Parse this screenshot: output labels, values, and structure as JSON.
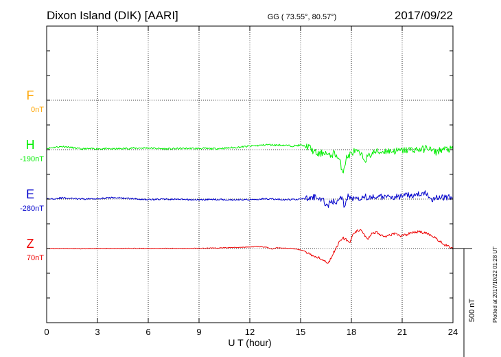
{
  "header": {
    "station": "Dixon Island (DIK)  [AARI]",
    "coords": "GG ( 73.55°,  80.57°)",
    "date": "2017/09/22"
  },
  "footer_note": "Plotted at 2017/10/22 01:28 UT",
  "chart_data": {
    "type": "line",
    "xlabel": "U T (hour)",
    "xlim": [
      0,
      24
    ],
    "xticks": [
      0,
      3,
      6,
      9,
      12,
      15,
      18,
      21,
      24
    ],
    "ylim": [
      -1200,
      0
    ],
    "grid": true,
    "scale_bar": {
      "label": "500 nT",
      "value": 500
    },
    "components": [
      {
        "name": "F",
        "baseline_label": "0nT",
        "baseline": -300,
        "color": "#ffa500"
      },
      {
        "name": "H",
        "baseline_label": "-190nT",
        "baseline": -500,
        "color": "#00ee00"
      },
      {
        "name": "E",
        "baseline_label": "-280nT",
        "baseline": -700,
        "color": "#0000cc"
      },
      {
        "name": "Z",
        "baseline_label": "70nT",
        "baseline": -900,
        "color": "#ee0000"
      }
    ],
    "series": [
      {
        "name": "H",
        "color": "#00ee00",
        "noise": 8,
        "seed": 11,
        "x": [
          0,
          0.5,
          1,
          1.5,
          2,
          3,
          4,
          5,
          6,
          7,
          8,
          9,
          10,
          10.5,
          11,
          12,
          13,
          14,
          14.5,
          15,
          15.5,
          15.8,
          16.1,
          16.4,
          16.7,
          17,
          17.3,
          17.5,
          17.7,
          17.9,
          18.2,
          18.5,
          18.8,
          19.1,
          19.4,
          19.7,
          20,
          20.5,
          21,
          21.5,
          22,
          22.3,
          22.5,
          22.8,
          23,
          23.3,
          23.6,
          24
        ],
        "y": [
          -495,
          -490,
          -487,
          -492,
          -497,
          -496,
          -497,
          -494,
          -493,
          -497,
          -495,
          -495,
          -496,
          -494,
          -492,
          -486,
          -480,
          -482,
          -485,
          -482,
          -490,
          -510,
          -520,
          -508,
          -528,
          -512,
          -545,
          -590,
          -535,
          -520,
          -505,
          -518,
          -540,
          -522,
          -508,
          -510,
          -505,
          -506,
          -504,
          -500,
          -500,
          -498,
          -490,
          -506,
          -510,
          -500,
          -498,
          -500
        ]
      },
      {
        "name": "E",
        "color": "#0000cc",
        "noise": 7,
        "seed": 29,
        "x": [
          0,
          1,
          2,
          3,
          4,
          5,
          6,
          7,
          8,
          9,
          10,
          11,
          12,
          13,
          14,
          15,
          15.5,
          16,
          16.3,
          16.6,
          16.9,
          17.2,
          17.4,
          17.6,
          17.8,
          18,
          18.2,
          18.5,
          18.8,
          19,
          19.3,
          19.6,
          20,
          20.5,
          21,
          21.5,
          22,
          22.2,
          22.5,
          22.8,
          23,
          23.5,
          24
        ],
        "y": [
          -700,
          -695,
          -700,
          -698,
          -694,
          -698,
          -702,
          -700,
          -702,
          -703,
          -701,
          -703,
          -702,
          -698,
          -703,
          -700,
          -697,
          -690,
          -705,
          -725,
          -710,
          -712,
          -690,
          -735,
          -680,
          -700,
          -690,
          -695,
          -685,
          -700,
          -690,
          -688,
          -695,
          -690,
          -690,
          -683,
          -682,
          -675,
          -680,
          -700,
          -690,
          -695,
          -690
        ]
      },
      {
        "name": "Z",
        "color": "#ee0000",
        "noise": 3,
        "seed": 47,
        "x": [
          0,
          1,
          2,
          3,
          4,
          5,
          6,
          7,
          8,
          9,
          10,
          11,
          12,
          12.5,
          13,
          13.3,
          13.6,
          14,
          14.5,
          15,
          15.3,
          15.6,
          16,
          16.3,
          16.6,
          16.8,
          17,
          17.3,
          17.5,
          17.7,
          17.9,
          18.1,
          18.3,
          18.6,
          18.8,
          19,
          19.2,
          19.5,
          20,
          20.5,
          21,
          21.5,
          22,
          22.5,
          23,
          23.5,
          24
        ],
        "y": [
          -900,
          -900,
          -901,
          -900,
          -900,
          -899,
          -900,
          -899,
          -900,
          -899,
          -898,
          -896,
          -894,
          -892,
          -895,
          -902,
          -897,
          -898,
          -900,
          -905,
          -912,
          -925,
          -935,
          -945,
          -960,
          -940,
          -910,
          -870,
          -855,
          -865,
          -880,
          -845,
          -830,
          -825,
          -850,
          -860,
          -840,
          -835,
          -855,
          -840,
          -850,
          -838,
          -832,
          -840,
          -860,
          -885,
          -900
        ]
      }
    ]
  }
}
